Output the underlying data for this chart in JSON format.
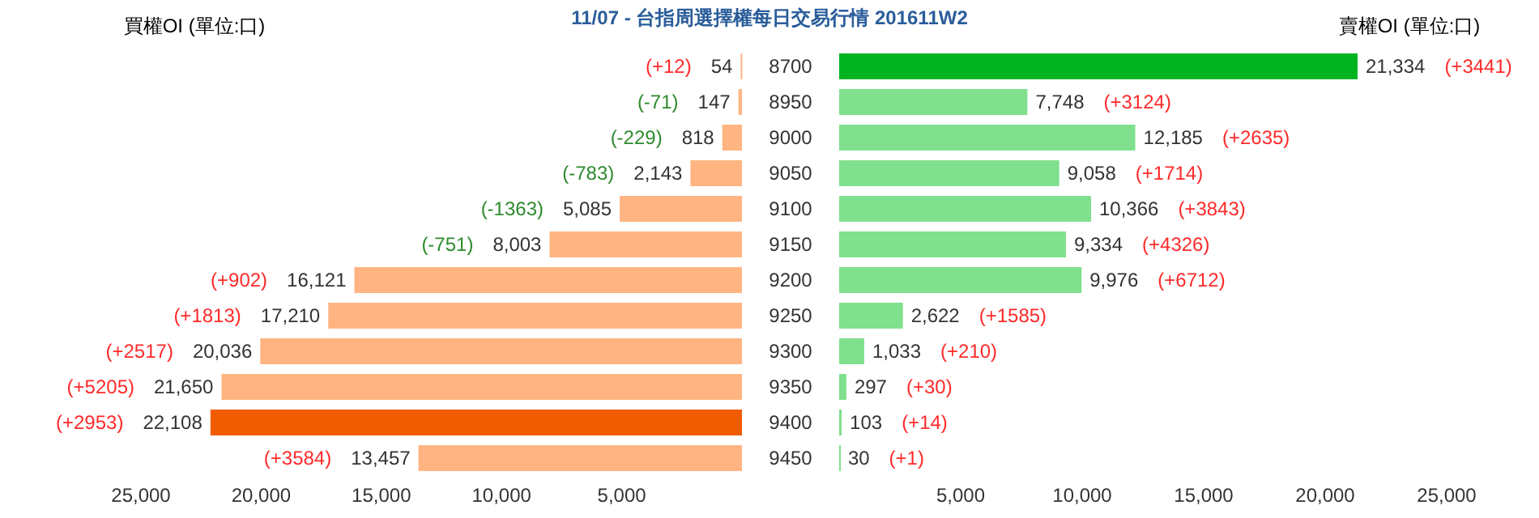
{
  "chart_data": [
    {
      "type": "bar",
      "orientation": "horizontal",
      "title": "11/07 - 台指周選擇權每日交易行情 201611W2",
      "xlabel": "買權OI (單位:口)",
      "categories": [
        "8700",
        "8950",
        "9000",
        "9050",
        "9100",
        "9150",
        "9200",
        "9250",
        "9300",
        "9350",
        "9400",
        "9450"
      ],
      "values": [
        54,
        147,
        818,
        2143,
        5085,
        8003,
        16121,
        17210,
        20036,
        21650,
        22108,
        13457
      ],
      "colors": [
        "#ffb482",
        "#ffb482",
        "#ffb482",
        "#ffb482",
        "#ffb482",
        "#ffb482",
        "#ffb482",
        "#ffb482",
        "#ffb482",
        "#ffb482",
        "#f05c00",
        "#ffb482"
      ],
      "value_labels": [
        "54",
        "147",
        "818",
        "2,143",
        "5,085",
        "8,003",
        "16,121",
        "17,210",
        "20,036",
        "21,650",
        "22,108",
        "13,457"
      ],
      "annotations": [
        "(+12)",
        "(-71)",
        "(-229)",
        "(-783)",
        "(-1363)",
        "(-751)",
        "(+902)",
        "(+1813)",
        "(+2517)",
        "(+5205)",
        "(+2953)",
        "(+3584)"
      ],
      "xlim": [
        25000,
        0
      ],
      "xticks": [
        {
          "value": 25000,
          "label": "25,000"
        },
        {
          "value": 20000,
          "label": "20,000"
        },
        {
          "value": 15000,
          "label": "15,000"
        },
        {
          "value": 10000,
          "label": "10,000"
        },
        {
          "value": 5000,
          "label": "5,000"
        }
      ],
      "grid": false
    },
    {
      "type": "bar",
      "orientation": "horizontal",
      "xlabel": "賣權OI (單位:口)",
      "categories": [
        "8700",
        "8950",
        "9000",
        "9050",
        "9100",
        "9150",
        "9200",
        "9250",
        "9300",
        "9350",
        "9400",
        "9450"
      ],
      "values": [
        21334,
        7748,
        12185,
        9058,
        10366,
        9334,
        9976,
        2622,
        1033,
        297,
        103,
        30
      ],
      "colors": [
        "#00b420",
        "#80e08e",
        "#80e08e",
        "#80e08e",
        "#80e08e",
        "#80e08e",
        "#80e08e",
        "#80e08e",
        "#80e08e",
        "#80e08e",
        "#80e08e",
        "#80e08e"
      ],
      "value_labels": [
        "21,334",
        "7,748",
        "12,185",
        "9,058",
        "10,366",
        "9,334",
        "9,976",
        "2,622",
        "1,033",
        "297",
        "103",
        "30"
      ],
      "annotations": [
        "(+3441)",
        "(+3124)",
        "(+2635)",
        "(+1714)",
        "(+3843)",
        "(+4326)",
        "(+6712)",
        "(+1585)",
        "(+210)",
        "(+30)",
        "(+14)",
        "(+1)"
      ],
      "xlim": [
        0,
        25000
      ],
      "xticks": [
        {
          "value": 5000,
          "label": "5,000"
        },
        {
          "value": 10000,
          "label": "10,000"
        },
        {
          "value": 15000,
          "label": "15,000"
        },
        {
          "value": 20000,
          "label": "20,000"
        },
        {
          "value": 25000,
          "label": "25,000"
        }
      ],
      "tick_labels": "x",
      "grid": false
    }
  ]
}
